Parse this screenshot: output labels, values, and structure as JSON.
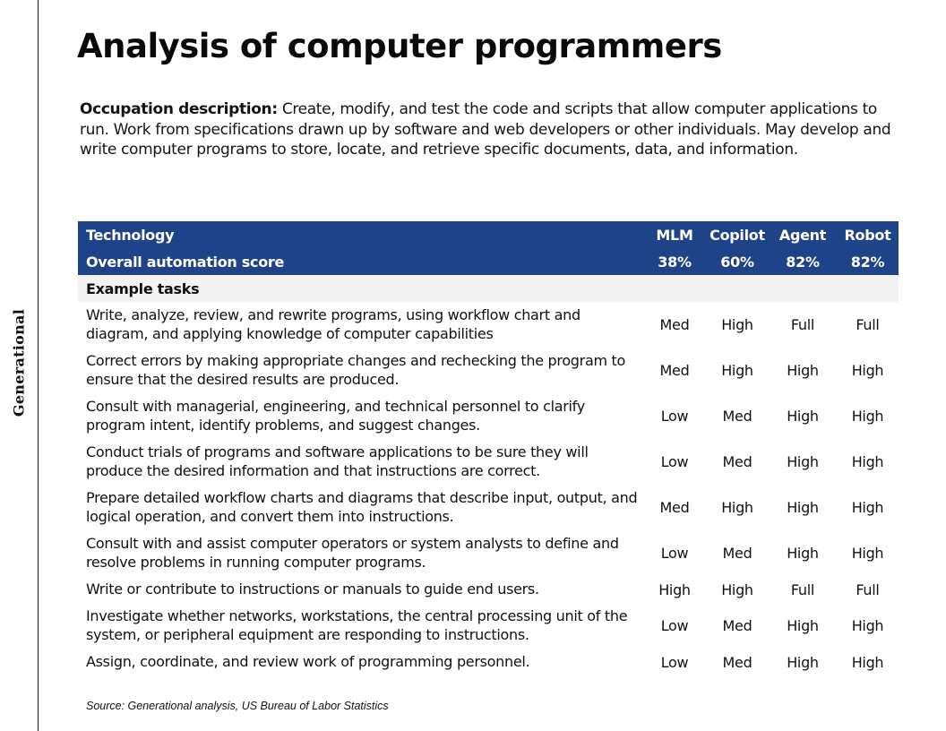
{
  "brand": "Generational",
  "title": "Analysis of computer programmers",
  "description": {
    "label": "Occupation description:",
    "text": "Create, modify, and test the code and scripts that allow computer applications to run. Work from specifications drawn up by software and web developers or other individuals. May develop and write computer programs to store, locate, and retrieve specific documents, data, and information."
  },
  "table": {
    "header": {
      "label": "Technology",
      "columns": [
        "MLM",
        "Copilot",
        "Agent",
        "Robot"
      ]
    },
    "overall": {
      "label": "Overall automation score",
      "values": [
        "38%",
        "60%",
        "82%",
        "82%"
      ]
    },
    "section_label": "Example tasks",
    "tasks": [
      {
        "text": "Write, analyze, review, and rewrite programs, using workflow chart and diagram, and applying knowledge of computer capabilities",
        "values": [
          "Med",
          "High",
          "Full",
          "Full"
        ]
      },
      {
        "text": "Correct errors by making appropriate changes and rechecking the program to ensure that the desired results are produced.",
        "values": [
          "Med",
          "High",
          "High",
          "High"
        ]
      },
      {
        "text": "Consult with managerial, engineering, and technical personnel to clarify program intent, identify problems, and suggest changes.",
        "values": [
          "Low",
          "Med",
          "High",
          "High"
        ]
      },
      {
        "text": "Conduct trials of programs and software applications to be sure they will produce the desired information and that instructions are correct.",
        "values": [
          "Low",
          "Med",
          "High",
          "High"
        ]
      },
      {
        "text": "Prepare detailed workflow charts and diagrams that describe input, output, and logical operation, and convert them into instructions.",
        "values": [
          "Med",
          "High",
          "High",
          "High"
        ]
      },
      {
        "text": "Consult with and assist computer operators or system analysts to define and resolve problems in running computer programs.",
        "values": [
          "Low",
          "Med",
          "High",
          "High"
        ]
      },
      {
        "text": "Write or contribute to instructions or manuals to guide end users.",
        "values": [
          "High",
          "High",
          "Full",
          "Full"
        ]
      },
      {
        "text": "Investigate whether networks, workstations, the central processing unit of the system, or peripheral equipment are responding to instructions.",
        "values": [
          "Low",
          "Med",
          "High",
          "High"
        ]
      },
      {
        "text": "Assign, coordinate, and review work of programming personnel.",
        "values": [
          "Low",
          "Med",
          "High",
          "High"
        ]
      }
    ]
  },
  "source": "Source: Generational analysis, US Bureau of Labor Statistics",
  "colors": {
    "header_bg": "#1e4388",
    "section_bg": "#f3f3f3"
  }
}
